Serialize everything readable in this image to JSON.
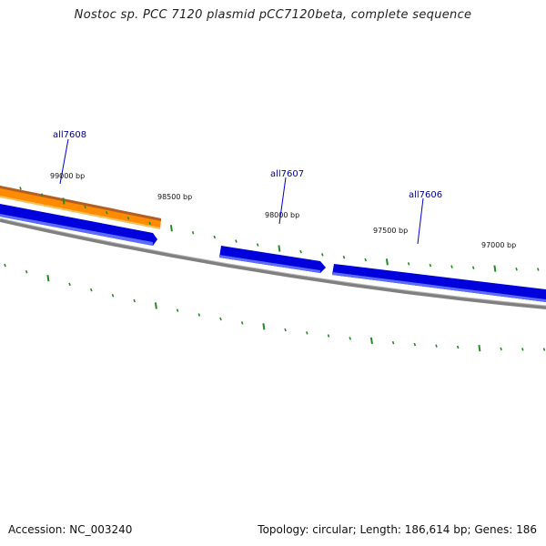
{
  "title": "Nostoc sp. PCC 7120 plasmid pCC7120beta, complete sequence",
  "footer": {
    "accession": "Accession: NC_003240",
    "summary": "Topology: circular; Length: 186,614 bp; Genes: 186"
  },
  "genes": [
    {
      "name": "all7608",
      "labeled": true,
      "color": "#0000dd"
    },
    {
      "name": "all7607",
      "labeled": true,
      "color": "#0000dd"
    },
    {
      "name": "all7606",
      "labeled": true,
      "color": "#0000dd"
    }
  ],
  "orange_feature": {
    "color": "#ff8c00"
  },
  "ticks": [
    {
      "label": "99000 bp"
    },
    {
      "label": "98500 bp"
    },
    {
      "label": "98000 bp"
    },
    {
      "label": "97500 bp"
    },
    {
      "label": "97000 bp"
    }
  ],
  "colors": {
    "backbone": "#808080",
    "gene_forward": "#0000dd",
    "feature_orange": "#ff8c00",
    "tick_mark": "#228b22",
    "label_text": "#00008b"
  }
}
